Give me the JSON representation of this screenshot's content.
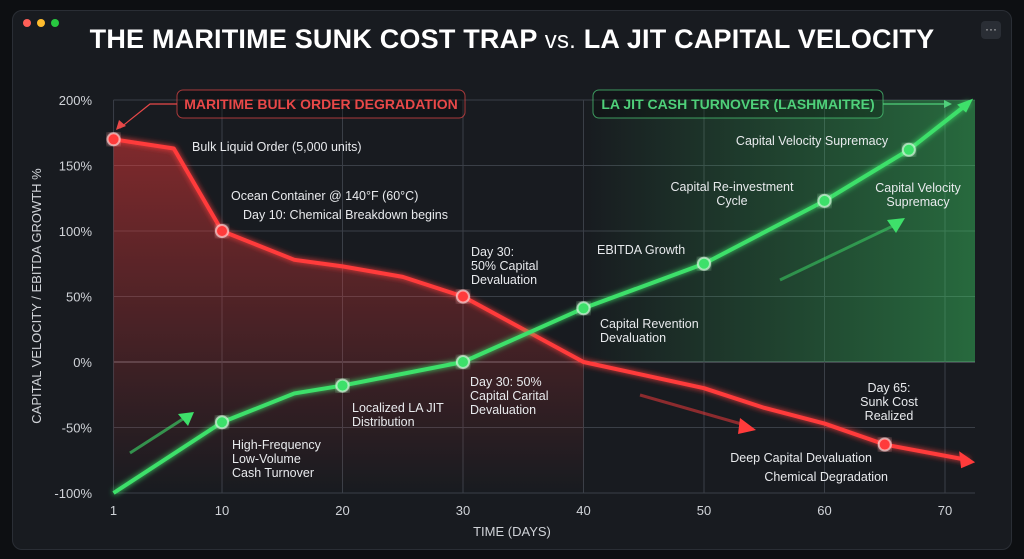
{
  "window": {
    "title_part1": "THE MARITIME SUNK COST TRAP",
    "title_vs": "vs.",
    "title_part2": "LA JIT CAPITAL VELOCITY",
    "menu_label": "···"
  },
  "colors": {
    "red": "#ff3b3b",
    "green": "#3ee06a",
    "background": "#181b20",
    "traffic_lights": [
      "#ff5f57",
      "#febc2e",
      "#28c840"
    ]
  },
  "chart_data": {
    "type": "line",
    "title": "THE MARITIME SUNK COST TRAP vs. LA JIT CAPITAL VELOCITY",
    "xlabel": "TIME (DAYS)",
    "ylabel": "CAPITAL VELOCITY / EBITDA GROWTH %",
    "xlim": [
      1,
      72
    ],
    "ylim": [
      -100,
      200
    ],
    "x_ticks": [
      "1",
      "10",
      "20",
      "30",
      "40",
      "50",
      "60",
      "70"
    ],
    "x_tick_values": [
      1,
      10,
      20,
      30,
      40,
      50,
      60,
      70
    ],
    "y_ticks": [
      "200%",
      "150%",
      "100%",
      "50%",
      "0%",
      "-50%",
      "-100%"
    ],
    "y_tick_values": [
      200,
      150,
      100,
      50,
      0,
      -50,
      -100
    ],
    "grid": true,
    "series": [
      {
        "name": "MARITIME BULK ORDER DEGRADATION",
        "color": "#ff3b3b",
        "x": [
          1,
          6,
          10,
          16,
          20,
          25,
          30,
          35,
          40,
          45,
          50,
          55,
          60,
          65,
          72
        ],
        "y": [
          170,
          163,
          100,
          78,
          73,
          65,
          50,
          25,
          0,
          -10,
          -20,
          -35,
          -47,
          -63,
          -75
        ],
        "markers": [
          1,
          10,
          30,
          65
        ]
      },
      {
        "name": "LA JIT CASH TURNOVER (LASHMAITRE)",
        "color": "#3ee06a",
        "x": [
          1,
          10,
          16,
          20,
          30,
          40,
          50,
          60,
          67,
          72
        ],
        "y": [
          -100,
          -46,
          -24,
          -18,
          0,
          41,
          75,
          123,
          162,
          198
        ],
        "markers": [
          10,
          20,
          30,
          40,
          50,
          60,
          67
        ]
      }
    ],
    "annotations": [
      {
        "text": [
          "Bulk Liquid Order (5,000 units)"
        ],
        "color": "white"
      },
      {
        "text": [
          "Ocean Container @ 140°F (60°C)"
        ]
      },
      {
        "text": [
          "Day 10: Chemical Breakdown begins"
        ]
      },
      {
        "text": [
          "Day 30:",
          "50% Capital",
          "Devaluation"
        ]
      },
      {
        "text": [
          "EBITDA Growth"
        ]
      },
      {
        "text": [
          "Capital Revention",
          "Devaluation"
        ]
      },
      {
        "text": [
          "Capital Re-investment",
          "Cycle"
        ]
      },
      {
        "text": [
          "Capital Velocity Supremacy"
        ]
      },
      {
        "text": [
          "Capital Velocity",
          "Supremacy"
        ]
      },
      {
        "text": [
          "High-Frequency",
          "Low-Volume",
          "Cash Turnover"
        ]
      },
      {
        "text": [
          "Localized LA JIT",
          "Distribution"
        ]
      },
      {
        "text": [
          "Day 30: 50%",
          "Capital Carital",
          "Devaluation"
        ]
      },
      {
        "text": [
          "Day 65:",
          "Sunk Cost",
          "Realized"
        ]
      },
      {
        "text": [
          "Deep Capital Devaluation"
        ]
      },
      {
        "text": [
          "Chemical Degradation"
        ]
      }
    ]
  }
}
